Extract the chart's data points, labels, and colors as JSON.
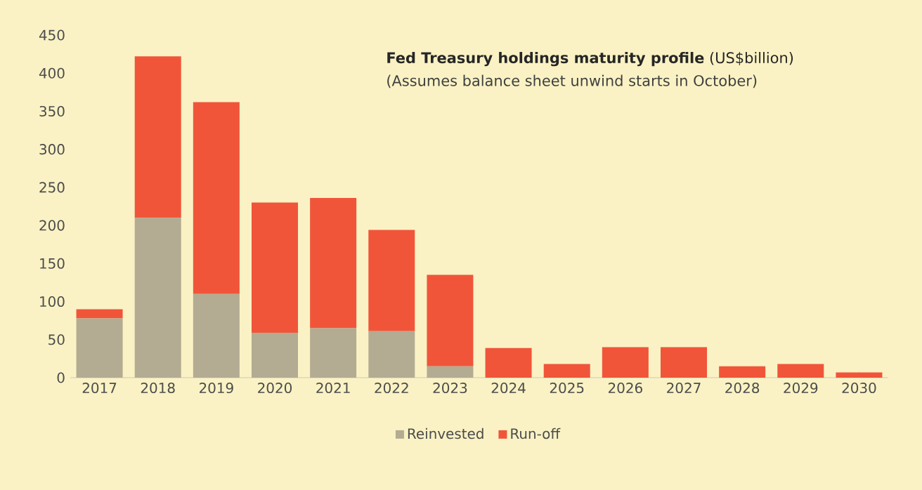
{
  "chart_data": {
    "type": "bar",
    "stacked": true,
    "title": "**Fed Treasury holdings maturity profile** (US$billion)",
    "subtitle": "(Assumes balance sheet unwind starts in October)",
    "categories": [
      "2017",
      "2018",
      "2019",
      "2020",
      "2021",
      "2022",
      "2023",
      "2024",
      "2025",
      "2026",
      "2027",
      "2028",
      "2029",
      "2030"
    ],
    "series": [
      {
        "name": "Reinvested",
        "color": "#b3ab92",
        "values": [
          78,
          210,
          110,
          59,
          65,
          61,
          15,
          0,
          0,
          0,
          0,
          0,
          0,
          0
        ]
      },
      {
        "name": "Run-off",
        "color": "#f0553a",
        "values": [
          12,
          212,
          252,
          171,
          171,
          133,
          120,
          39,
          18,
          40,
          40,
          15,
          18,
          7
        ]
      }
    ],
    "ylim": [
      0,
      450
    ],
    "yticks": [
      0,
      50,
      100,
      150,
      200,
      250,
      300,
      350,
      400,
      450
    ],
    "grid": false,
    "legend": "bottom"
  }
}
